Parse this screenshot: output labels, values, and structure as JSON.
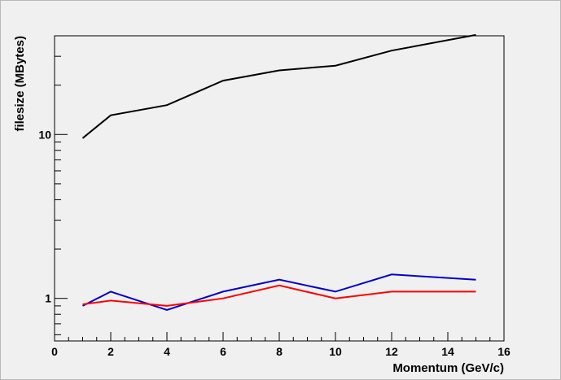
{
  "chart_data": {
    "type": "line",
    "title": "",
    "xlabel": "Momentum (GeV/c)",
    "ylabel": "filesize (MBytes)",
    "xlim": [
      0,
      16
    ],
    "ylim": [
      0.55,
      40
    ],
    "yscale": "log",
    "grid": false,
    "x_ticks": [
      0,
      2,
      4,
      6,
      8,
      10,
      12,
      14,
      16
    ],
    "x_tick_labels": [
      "0",
      "2",
      "4",
      "6",
      "8",
      "10",
      "12",
      "14",
      "16"
    ],
    "y_ticks": [
      1,
      10
    ],
    "y_tick_labels": [
      "1",
      "10"
    ],
    "x": [
      1,
      2,
      4,
      6,
      8,
      10,
      12,
      15
    ],
    "series": [
      {
        "color": "#000000",
        "values": [
          9.5,
          13.1,
          15.1,
          21.3,
          24.6,
          26.3,
          32.5,
          40.5
        ]
      },
      {
        "color": "#0000cc",
        "values": [
          0.9,
          1.1,
          0.85,
          1.1,
          1.3,
          1.1,
          1.4,
          1.3
        ]
      },
      {
        "color": "#ff0000",
        "values": [
          0.92,
          0.97,
          0.9,
          1.0,
          1.2,
          1.0,
          1.1,
          1.1
        ]
      }
    ]
  }
}
